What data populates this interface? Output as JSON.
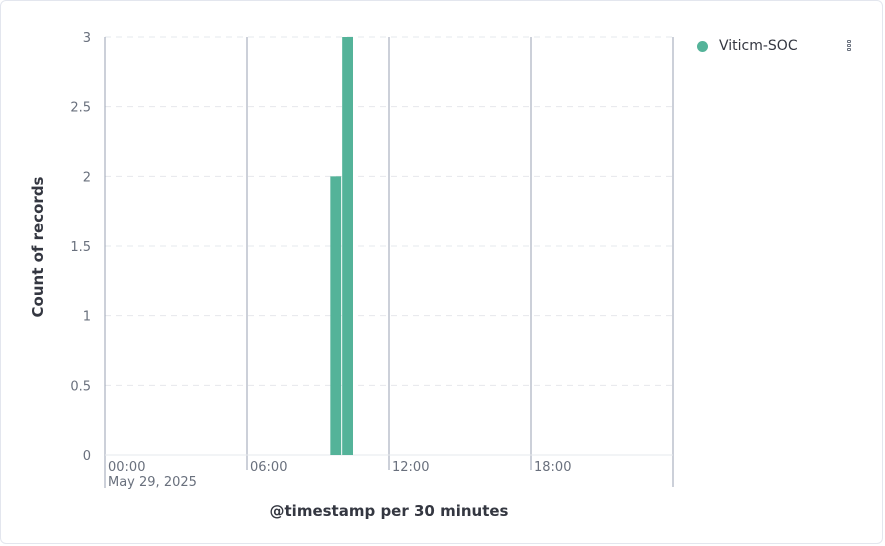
{
  "colors": {
    "series": "#54b399",
    "grid": "#e6e8ec",
    "axis": "#98a2b3"
  },
  "legend": {
    "items": [
      {
        "label": "Viticm-SOC",
        "color": "#54b399"
      }
    ]
  },
  "icons": {
    "menu": "vertical-dots-icon"
  },
  "chart_data": {
    "type": "bar",
    "xlabel": "@timestamp per 30 minutes",
    "ylabel": "Count of records",
    "ylim": [
      0,
      3
    ],
    "yticks": [
      "0",
      "0.5",
      "1",
      "1.5",
      "2",
      "2.5",
      "3"
    ],
    "xticks": [
      {
        "label": "00:00",
        "sublabel": "May 29, 2025",
        "hour": 0
      },
      {
        "label": "06:00",
        "sublabel": "",
        "hour": 6
      },
      {
        "label": "12:00",
        "sublabel": "",
        "hour": 12
      },
      {
        "label": "18:00",
        "sublabel": "",
        "hour": 18
      }
    ],
    "xrange_hours": [
      0,
      24
    ],
    "grid": true,
    "legend_position": "top-right",
    "series": [
      {
        "name": "Viticm-SOC",
        "bars": [
          {
            "start": "09:30",
            "value": 2
          },
          {
            "start": "10:00",
            "value": 3
          }
        ]
      }
    ]
  }
}
